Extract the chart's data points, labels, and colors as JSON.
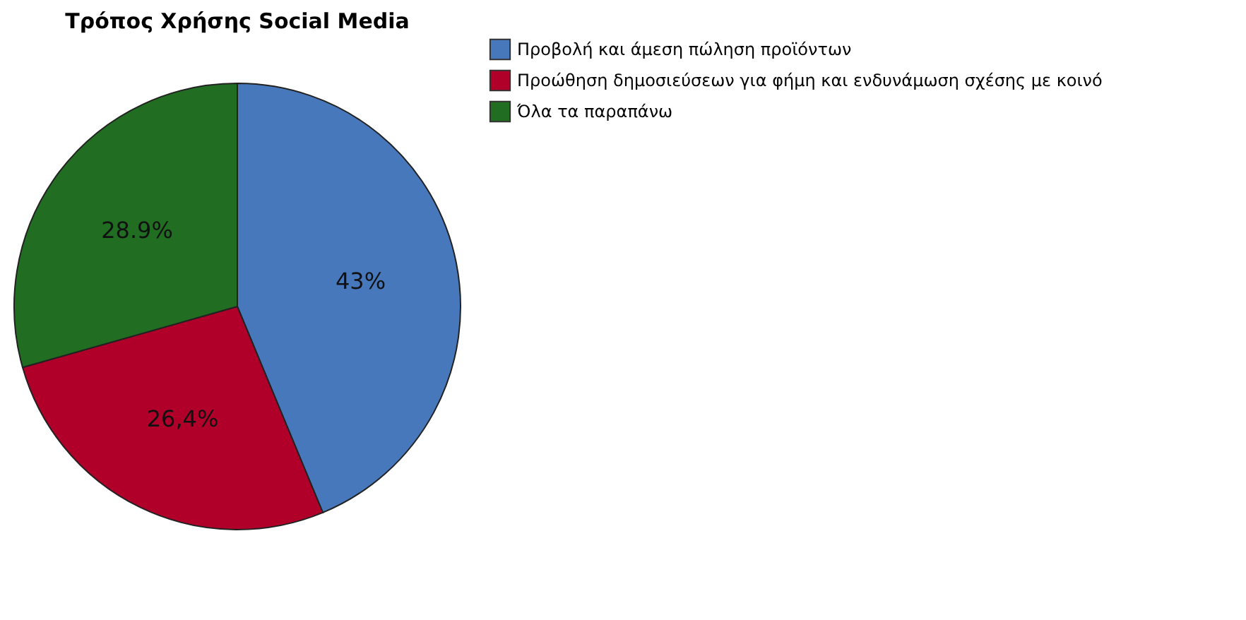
{
  "chart_data": {
    "type": "pie",
    "title": "Τρόπος Χρήσης Social Media",
    "categories": [
      "Προβολή και άμεση πώληση προϊόντων",
      "Προώθηση δημοσιεύσεων για φήμη και ενδυνάμωση σχέσης με κοινό",
      "Όλα τα παραπάνω"
    ],
    "values": [
      43,
      26.4,
      28.9
    ],
    "value_labels": [
      "43%",
      "26,4%",
      "28.9%"
    ],
    "colors": [
      "#4878bc",
      "#b0002a",
      "#216e22"
    ],
    "legend": "top right"
  }
}
